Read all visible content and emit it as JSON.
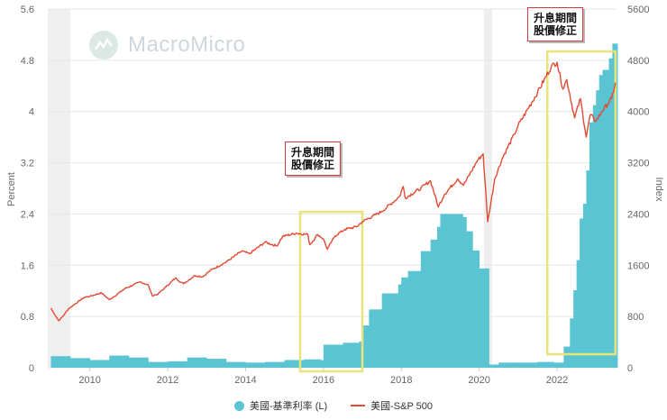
{
  "watermark": {
    "brand": "MacroMicro",
    "icon": "chart-circle-icon"
  },
  "annotations": [
    {
      "id": "callout-2016",
      "line1": "升息期間",
      "line2": "股價修正"
    },
    {
      "id": "callout-2022",
      "line1": "升息期間",
      "line2": "股價修正"
    }
  ],
  "legend": {
    "items": [
      {
        "label": "美國-基準利率 (L)",
        "color": "#5bc4d2",
        "symbol": "circle"
      },
      {
        "label": "美國-S&P 500",
        "color": "#e24a33",
        "symbol": "line"
      }
    ]
  },
  "chart_data": {
    "type": "bar+line",
    "title": "",
    "xlabel": "",
    "ylabel_left": "Percent",
    "ylabel_right": "Index",
    "x_ticks": [
      "2010",
      "2012",
      "2014",
      "2016",
      "2018",
      "2020",
      "2022"
    ],
    "y_left_ticks": [
      "0",
      "0.8",
      "1.6",
      "2.4",
      "3.2",
      "4",
      "4.8",
      "5.6"
    ],
    "y_right_ticks": [
      "0",
      "800",
      "1600",
      "2400",
      "3200",
      "4000",
      "4800",
      "5600"
    ],
    "ylim_left": [
      0,
      5.6
    ],
    "ylim_right": [
      0,
      5600
    ],
    "xlim": [
      2008.92,
      2023.55
    ],
    "recession_shading": [
      [
        2008.92,
        2009.5
      ],
      [
        2020.12,
        2020.33
      ]
    ],
    "highlight_boxes": [
      [
        2015.4,
        2017.0
      ],
      [
        2021.75,
        2023.5
      ]
    ],
    "series": [
      {
        "name": "美國-基準利率 (L)",
        "type": "bar",
        "axis": "left",
        "color": "#5bc4d2",
        "points": [
          [
            2009.0,
            0.18
          ],
          [
            2009.5,
            0.15
          ],
          [
            2010.0,
            0.12
          ],
          [
            2010.5,
            0.19
          ],
          [
            2011.0,
            0.16
          ],
          [
            2011.5,
            0.09
          ],
          [
            2012.0,
            0.1
          ],
          [
            2012.5,
            0.16
          ],
          [
            2013.0,
            0.14
          ],
          [
            2013.5,
            0.09
          ],
          [
            2014.0,
            0.08
          ],
          [
            2014.5,
            0.09
          ],
          [
            2015.0,
            0.12
          ],
          [
            2015.5,
            0.13
          ],
          [
            2015.92,
            0.12
          ],
          [
            2016.0,
            0.36
          ],
          [
            2016.5,
            0.39
          ],
          [
            2016.92,
            0.41
          ],
          [
            2017.0,
            0.66
          ],
          [
            2017.17,
            0.91
          ],
          [
            2017.5,
            1.16
          ],
          [
            2017.92,
            1.3
          ],
          [
            2018.0,
            1.41
          ],
          [
            2018.17,
            1.51
          ],
          [
            2018.5,
            1.82
          ],
          [
            2018.75,
            2.0
          ],
          [
            2018.92,
            2.2
          ],
          [
            2019.0,
            2.4
          ],
          [
            2019.58,
            2.35
          ],
          [
            2019.67,
            2.13
          ],
          [
            2019.83,
            1.83
          ],
          [
            2020.0,
            1.55
          ],
          [
            2020.17,
            1.55
          ],
          [
            2020.25,
            0.05
          ],
          [
            2020.5,
            0.08
          ],
          [
            2021.0,
            0.08
          ],
          [
            2021.5,
            0.09
          ],
          [
            2021.92,
            0.08
          ],
          [
            2022.17,
            0.33
          ],
          [
            2022.33,
            0.77
          ],
          [
            2022.42,
            1.21
          ],
          [
            2022.5,
            1.68
          ],
          [
            2022.58,
            2.33
          ],
          [
            2022.67,
            2.56
          ],
          [
            2022.75,
            3.08
          ],
          [
            2022.83,
            3.83
          ],
          [
            2022.92,
            4.1
          ],
          [
            2023.0,
            4.33
          ],
          [
            2023.08,
            4.57
          ],
          [
            2023.17,
            4.65
          ],
          [
            2023.33,
            4.83
          ],
          [
            2023.42,
            5.06
          ]
        ]
      },
      {
        "name": "美國-S&P 500",
        "type": "line",
        "axis": "right",
        "color": "#e24a33",
        "points": [
          [
            2009.0,
            931
          ],
          [
            2009.12,
            810
          ],
          [
            2009.2,
            735
          ],
          [
            2009.3,
            797
          ],
          [
            2009.45,
            919
          ],
          [
            2009.6,
            987
          ],
          [
            2009.85,
            1096
          ],
          [
            2010.0,
            1115
          ],
          [
            2010.3,
            1169
          ],
          [
            2010.5,
            1062
          ],
          [
            2010.6,
            1101
          ],
          [
            2010.9,
            1235
          ],
          [
            2011.3,
            1340
          ],
          [
            2011.5,
            1290
          ],
          [
            2011.6,
            1125
          ],
          [
            2011.75,
            1150
          ],
          [
            2011.95,
            1260
          ],
          [
            2012.2,
            1400
          ],
          [
            2012.4,
            1310
          ],
          [
            2012.7,
            1440
          ],
          [
            2012.9,
            1420
          ],
          [
            2013.1,
            1520
          ],
          [
            2013.5,
            1650
          ],
          [
            2013.9,
            1820
          ],
          [
            2014.1,
            1780
          ],
          [
            2014.5,
            1960
          ],
          [
            2014.8,
            1900
          ],
          [
            2014.95,
            2050
          ],
          [
            2015.3,
            2100
          ],
          [
            2015.6,
            2080
          ],
          [
            2015.65,
            1920
          ],
          [
            2015.85,
            2080
          ],
          [
            2016.0,
            2010
          ],
          [
            2016.1,
            1850
          ],
          [
            2016.3,
            2060
          ],
          [
            2016.55,
            2160
          ],
          [
            2016.85,
            2200
          ],
          [
            2017.0,
            2280
          ],
          [
            2017.5,
            2440
          ],
          [
            2017.95,
            2670
          ],
          [
            2018.05,
            2830
          ],
          [
            2018.1,
            2650
          ],
          [
            2018.5,
            2800
          ],
          [
            2018.75,
            2920
          ],
          [
            2018.95,
            2510
          ],
          [
            2019.1,
            2700
          ],
          [
            2019.45,
            2950
          ],
          [
            2019.6,
            2850
          ],
          [
            2019.95,
            3230
          ],
          [
            2020.1,
            3340
          ],
          [
            2020.22,
            2280
          ],
          [
            2020.4,
            2950
          ],
          [
            2020.6,
            3280
          ],
          [
            2020.9,
            3640
          ],
          [
            2021.0,
            3780
          ],
          [
            2021.5,
            4300
          ],
          [
            2021.85,
            4700
          ],
          [
            2022.0,
            4770
          ],
          [
            2022.15,
            4350
          ],
          [
            2022.25,
            4500
          ],
          [
            2022.45,
            3900
          ],
          [
            2022.6,
            4200
          ],
          [
            2022.75,
            3600
          ],
          [
            2022.85,
            3950
          ],
          [
            2023.0,
            3850
          ],
          [
            2023.15,
            4000
          ],
          [
            2023.4,
            4200
          ],
          [
            2023.5,
            4450
          ]
        ]
      }
    ]
  }
}
